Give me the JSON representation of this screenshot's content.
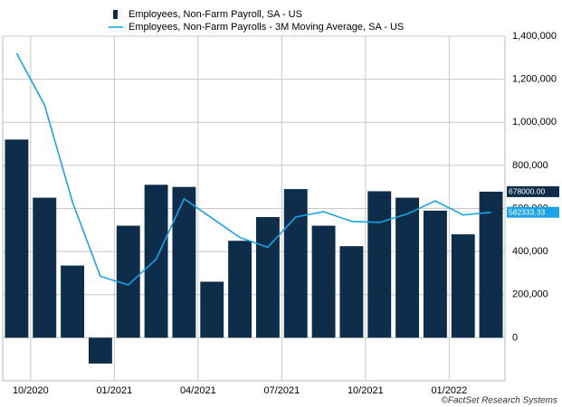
{
  "chart_data": {
    "type": "bar-line",
    "categories": [
      null,
      "10/2020",
      null,
      null,
      "01/2021",
      null,
      null,
      "04/2021",
      null,
      null,
      "07/2021",
      null,
      null,
      "10/2021",
      null,
      null,
      "01/2022",
      null
    ],
    "series": [
      {
        "name": "Employees, Non-Farm Payroll, SA - US",
        "type": "bar",
        "color": "#0d2d4b",
        "values": [
          920000,
          650000,
          335000,
          -120000,
          520000,
          710000,
          700000,
          260000,
          450000,
          560000,
          690000,
          520000,
          425000,
          680000,
          650000,
          590000,
          480000,
          678000
        ],
        "value_labels": [
          null,
          null,
          null,
          null,
          null,
          null,
          null,
          null,
          null,
          null,
          null,
          null,
          null,
          null,
          null,
          null,
          null,
          "678000.00"
        ]
      },
      {
        "name": "Employees, Non-Farm Payrolls - 3M Moving Average, SA - US",
        "type": "line",
        "color": "#1ba3e8",
        "values": [
          1320000,
          1080000,
          630000,
          285000,
          245000,
          365000,
          645000,
          555000,
          465000,
          420000,
          560000,
          585000,
          540000,
          535000,
          575000,
          635000,
          570000,
          582333.33
        ],
        "value_labels": [
          null,
          null,
          null,
          null,
          null,
          null,
          null,
          null,
          null,
          null,
          null,
          null,
          null,
          null,
          null,
          null,
          null,
          "582333.33"
        ]
      }
    ],
    "ylim": [
      -200000,
      1400000
    ],
    "yticks": [
      0,
      {
        "value": 200000,
        "label": "200,000"
      },
      {
        "value": 400000,
        "label": "400,000"
      },
      {
        "value": 600000,
        "label": "600,000"
      },
      {
        "value": 800000,
        "label": "800,000"
      },
      {
        "value": 1000000,
        "label": "1,000,000"
      },
      {
        "value": 1200000,
        "label": "1,200,000"
      },
      {
        "value": 1400000,
        "label": "1,400,000"
      }
    ],
    "grid": true,
    "source": "©FactSet Research Systems"
  }
}
